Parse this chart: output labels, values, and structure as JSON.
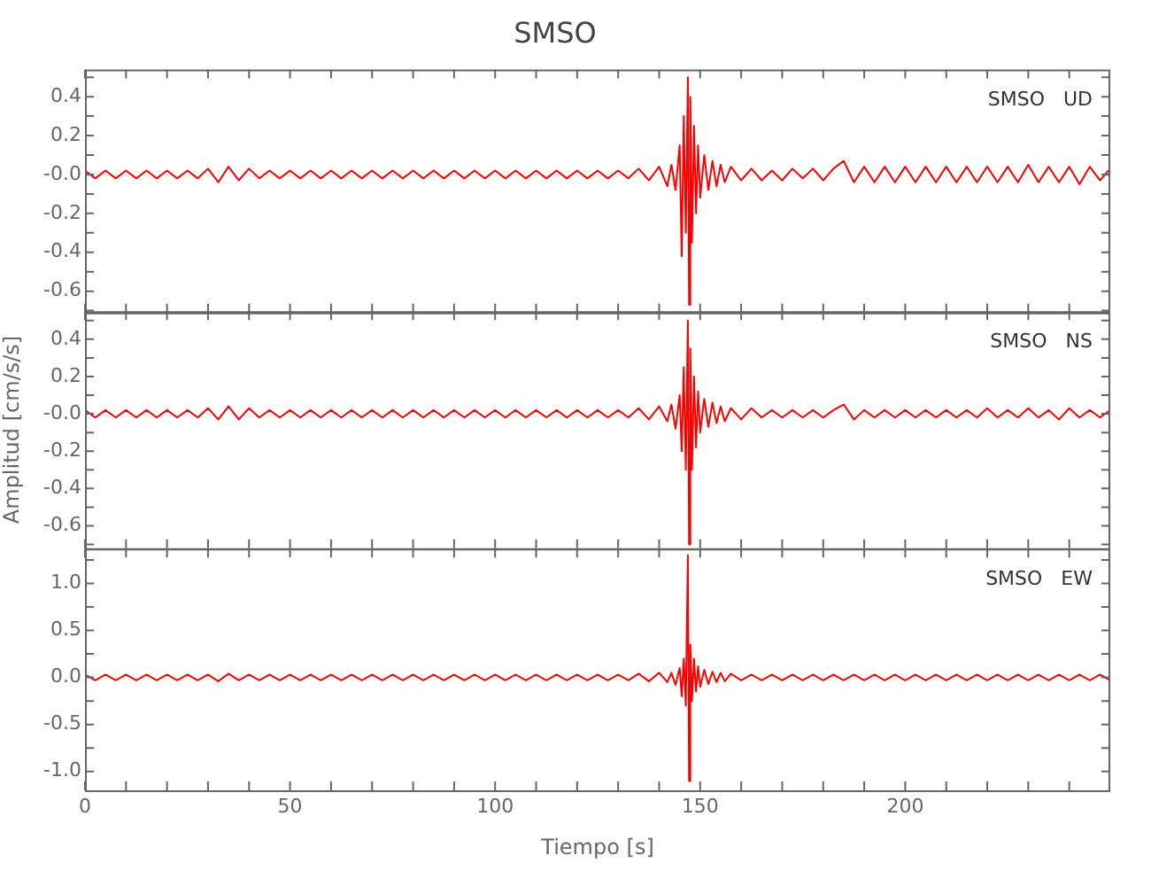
{
  "chart_data": [
    {
      "type": "line",
      "title": "SMSO",
      "annotations": [
        "SMSO   UD"
      ],
      "tick_labels": "y",
      "marker": "none",
      "x": [
        0,
        2.5,
        5,
        7.5,
        10,
        12.5,
        15,
        17.5,
        20,
        22.5,
        25,
        27.5,
        30,
        32.5,
        35,
        37.5,
        40,
        42.5,
        45,
        47.5,
        50,
        52.5,
        55,
        57.5,
        60,
        62.5,
        65,
        67.5,
        70,
        72.5,
        75,
        77.5,
        80,
        82.5,
        85,
        87.5,
        90,
        92.5,
        95,
        97.5,
        100,
        102.5,
        105,
        107.5,
        110,
        112.5,
        115,
        117.5,
        120,
        122.5,
        125,
        127.5,
        130,
        132.5,
        135,
        137.5,
        140,
        142,
        143,
        144,
        145,
        145.5,
        146,
        146.5,
        147,
        147.3,
        147.6,
        148,
        148.5,
        149,
        149.5,
        150,
        151,
        152,
        153,
        154,
        155,
        156,
        157.5,
        160,
        162.5,
        165,
        167.5,
        170,
        172.5,
        175,
        177.5,
        180,
        182.5,
        185,
        187.5,
        190,
        192.5,
        195,
        197.5,
        200,
        202.5,
        205,
        207.5,
        210,
        212.5,
        215,
        217.5,
        220,
        222.5,
        225,
        227.5,
        230,
        232.5,
        235,
        237.5,
        240,
        242.5,
        245,
        247.5,
        250
      ],
      "series": [
        {
          "color": "#ff0000",
          "values": [
            0.02,
            -0.02,
            0.02,
            -0.02,
            0.02,
            -0.02,
            0.02,
            -0.02,
            0.02,
            -0.02,
            0.02,
            -0.02,
            0.03,
            -0.04,
            0.04,
            -0.03,
            0.03,
            -0.02,
            0.02,
            -0.02,
            0.02,
            -0.02,
            0.02,
            -0.02,
            0.02,
            -0.02,
            0.02,
            -0.02,
            0.02,
            -0.02,
            0.02,
            -0.02,
            0.02,
            -0.02,
            0.02,
            -0.02,
            0.02,
            -0.02,
            0.02,
            -0.02,
            0.02,
            -0.02,
            0.02,
            -0.02,
            0.02,
            -0.02,
            0.02,
            -0.02,
            0.02,
            -0.02,
            0.02,
            -0.02,
            0.02,
            -0.02,
            0.03,
            -0.03,
            0.04,
            -0.06,
            0.05,
            -0.08,
            0.15,
            -0.42,
            0.3,
            -0.3,
            0.5,
            -0.67,
            0.4,
            -0.35,
            0.25,
            -0.2,
            0.15,
            -0.12,
            0.1,
            -0.08,
            0.07,
            -0.06,
            0.05,
            -0.04,
            0.04,
            -0.03,
            0.03,
            -0.03,
            0.02,
            -0.03,
            0.03,
            -0.02,
            0.03,
            -0.03,
            0.03,
            0.07,
            -0.04,
            0.04,
            -0.04,
            0.04,
            -0.04,
            0.04,
            -0.04,
            0.04,
            -0.04,
            0.04,
            -0.04,
            0.04,
            -0.04,
            0.04,
            -0.04,
            0.04,
            -0.04,
            0.05,
            -0.04,
            0.04,
            -0.04,
            0.04,
            -0.05,
            0.04,
            -0.03,
            0.03
          ]
        }
      ],
      "xlim": [
        0,
        250
      ],
      "xticks": [
        0,
        {
          "value": 10,
          "label": null
        },
        {
          "value": 20,
          "label": null
        },
        {
          "value": 30,
          "label": null
        },
        {
          "value": 40,
          "label": null
        },
        50,
        {
          "value": 60,
          "label": null
        },
        {
          "value": 70,
          "label": null
        },
        {
          "value": 80,
          "label": null
        },
        {
          "value": 90,
          "label": null
        },
        100,
        {
          "value": 110,
          "label": null
        },
        {
          "value": 120,
          "label": null
        },
        {
          "value": 130,
          "label": null
        },
        {
          "value": 140,
          "label": null
        },
        150,
        {
          "value": 160,
          "label": null
        },
        {
          "value": 170,
          "label": null
        },
        {
          "value": 180,
          "label": null
        },
        {
          "value": 190,
          "label": null
        },
        200,
        {
          "value": 210,
          "label": null
        },
        {
          "value": 220,
          "label": null
        },
        {
          "value": 230,
          "label": null
        },
        {
          "value": 240,
          "label": null
        }
      ],
      "ylim": [
        -0.71,
        0.54
      ],
      "yticks": [
        {
          "value": -0.7,
          "label": null
        },
        -0.6,
        {
          "value": -0.5,
          "label": null
        },
        -0.4,
        {
          "value": -0.3,
          "label": null
        },
        -0.2,
        {
          "value": -0.1,
          "label": null
        },
        {
          "value": 0,
          "label": "-0.0"
        },
        {
          "value": 0.1,
          "label": null
        },
        0.2,
        {
          "value": 0.3,
          "label": null
        },
        0.4,
        {
          "value": 0.5,
          "label": null
        }
      ]
    },
    {
      "type": "line",
      "ylabel": "Amplitud [cm/s/s]",
      "annotations": [
        "SMSO   NS"
      ],
      "tick_labels": "y",
      "marker": "none",
      "x": [
        0,
        2.5,
        5,
        7.5,
        10,
        12.5,
        15,
        17.5,
        20,
        22.5,
        25,
        27.5,
        30,
        32.5,
        35,
        37.5,
        40,
        42.5,
        45,
        47.5,
        50,
        52.5,
        55,
        57.5,
        60,
        62.5,
        65,
        67.5,
        70,
        72.5,
        75,
        77.5,
        80,
        82.5,
        85,
        87.5,
        90,
        92.5,
        95,
        97.5,
        100,
        102.5,
        105,
        107.5,
        110,
        112.5,
        115,
        117.5,
        120,
        122.5,
        125,
        127.5,
        130,
        132.5,
        135,
        137.5,
        140,
        142,
        143,
        144,
        145,
        145.5,
        146,
        146.5,
        147,
        147.3,
        147.6,
        148,
        148.5,
        149,
        149.5,
        150,
        151,
        152,
        153,
        154,
        155,
        156,
        157.5,
        160,
        162.5,
        165,
        167.5,
        170,
        172.5,
        175,
        177.5,
        180,
        182.5,
        185,
        187.5,
        190,
        192.5,
        195,
        197.5,
        200,
        202.5,
        205,
        207.5,
        210,
        212.5,
        215,
        217.5,
        220,
        222.5,
        225,
        227.5,
        230,
        232.5,
        235,
        237.5,
        240,
        242.5,
        245,
        247.5,
        250
      ],
      "series": [
        {
          "color": "#ff0000",
          "values": [
            0.02,
            -0.02,
            0.02,
            -0.02,
            0.02,
            -0.02,
            0.02,
            -0.02,
            0.02,
            -0.02,
            0.02,
            -0.02,
            0.03,
            -0.03,
            0.04,
            -0.03,
            0.03,
            -0.02,
            0.02,
            -0.02,
            0.02,
            -0.02,
            0.02,
            -0.02,
            0.02,
            -0.02,
            0.02,
            -0.02,
            0.02,
            -0.02,
            0.02,
            -0.02,
            0.02,
            -0.02,
            0.02,
            -0.02,
            0.02,
            -0.02,
            0.02,
            -0.02,
            0.02,
            -0.02,
            0.02,
            -0.02,
            0.02,
            -0.02,
            0.02,
            -0.02,
            0.02,
            -0.02,
            0.02,
            -0.02,
            0.02,
            -0.02,
            0.03,
            -0.03,
            0.04,
            -0.04,
            0.05,
            -0.08,
            0.1,
            -0.2,
            0.25,
            -0.3,
            0.5,
            -0.7,
            0.35,
            -0.3,
            0.2,
            -0.18,
            0.12,
            -0.1,
            0.08,
            -0.07,
            0.06,
            -0.05,
            0.04,
            -0.04,
            0.03,
            -0.03,
            0.03,
            -0.02,
            0.02,
            -0.02,
            0.02,
            -0.02,
            0.02,
            -0.02,
            0.02,
            0.05,
            -0.03,
            0.02,
            -0.02,
            0.02,
            -0.02,
            0.02,
            -0.02,
            0.02,
            -0.02,
            0.02,
            -0.02,
            0.02,
            -0.02,
            0.03,
            -0.02,
            0.02,
            -0.02,
            0.03,
            -0.02,
            0.02,
            -0.03,
            0.03,
            -0.02,
            0.02,
            -0.02,
            0.02
          ]
        }
      ],
      "xlim": [
        0,
        250
      ],
      "xticks": [
        0,
        {
          "value": 10,
          "label": null
        },
        {
          "value": 20,
          "label": null
        },
        {
          "value": 30,
          "label": null
        },
        {
          "value": 40,
          "label": null
        },
        50,
        {
          "value": 60,
          "label": null
        },
        {
          "value": 70,
          "label": null
        },
        {
          "value": 80,
          "label": null
        },
        {
          "value": 90,
          "label": null
        },
        100,
        {
          "value": 110,
          "label": null
        },
        {
          "value": 120,
          "label": null
        },
        {
          "value": 130,
          "label": null
        },
        {
          "value": 140,
          "label": null
        },
        150,
        {
          "value": 160,
          "label": null
        },
        {
          "value": 170,
          "label": null
        },
        {
          "value": 180,
          "label": null
        },
        {
          "value": 190,
          "label": null
        },
        200,
        {
          "value": 210,
          "label": null
        },
        {
          "value": 220,
          "label": null
        },
        {
          "value": 230,
          "label": null
        },
        {
          "value": 240,
          "label": null
        }
      ],
      "ylim": [
        -0.72,
        0.55
      ],
      "yticks": [
        {
          "value": -0.7,
          "label": null
        },
        -0.6,
        {
          "value": -0.5,
          "label": null
        },
        -0.4,
        {
          "value": -0.3,
          "label": null
        },
        -0.2,
        {
          "value": -0.1,
          "label": null
        },
        {
          "value": 0,
          "label": "-0.0"
        },
        {
          "value": 0.1,
          "label": null
        },
        0.2,
        {
          "value": 0.3,
          "label": null
        },
        0.4,
        {
          "value": 0.5,
          "label": null
        }
      ]
    },
    {
      "type": "line",
      "xlabel": "Tiempo [s]",
      "annotations": [
        "SMSO   EW"
      ],
      "marker": "none",
      "x": [
        0,
        2.5,
        5,
        7.5,
        10,
        12.5,
        15,
        17.5,
        20,
        22.5,
        25,
        27.5,
        30,
        32.5,
        35,
        37.5,
        40,
        42.5,
        45,
        47.5,
        50,
        52.5,
        55,
        57.5,
        60,
        62.5,
        65,
        67.5,
        70,
        72.5,
        75,
        77.5,
        80,
        82.5,
        85,
        87.5,
        90,
        92.5,
        95,
        97.5,
        100,
        102.5,
        105,
        107.5,
        110,
        112.5,
        115,
        117.5,
        120,
        122.5,
        125,
        127.5,
        130,
        132.5,
        135,
        137.5,
        140,
        142,
        143,
        144,
        145,
        145.5,
        146,
        146.5,
        147,
        147.3,
        147.6,
        148,
        148.5,
        149,
        149.5,
        150,
        151,
        152,
        153,
        154,
        155,
        156,
        157.5,
        160,
        162.5,
        165,
        167.5,
        170,
        172.5,
        175,
        177.5,
        180,
        182.5,
        185,
        187.5,
        190,
        192.5,
        195,
        197.5,
        200,
        202.5,
        205,
        207.5,
        210,
        212.5,
        215,
        217.5,
        220,
        222.5,
        225,
        227.5,
        230,
        232.5,
        235,
        237.5,
        240,
        242.5,
        245,
        247.5,
        250
      ],
      "series": [
        {
          "color": "#ff0000",
          "values": [
            0.03,
            -0.03,
            0.03,
            -0.03,
            0.03,
            -0.03,
            0.03,
            -0.03,
            0.03,
            -0.03,
            0.03,
            -0.03,
            0.03,
            -0.04,
            0.04,
            -0.03,
            0.03,
            -0.03,
            0.03,
            -0.03,
            0.03,
            -0.03,
            0.03,
            -0.03,
            0.03,
            -0.03,
            0.03,
            -0.03,
            0.03,
            -0.03,
            0.03,
            -0.03,
            0.03,
            -0.03,
            0.03,
            -0.03,
            0.03,
            -0.03,
            0.03,
            -0.03,
            0.03,
            -0.03,
            0.03,
            -0.03,
            0.03,
            -0.03,
            0.03,
            -0.03,
            0.03,
            -0.03,
            0.03,
            -0.03,
            0.03,
            -0.03,
            0.04,
            -0.04,
            0.05,
            -0.05,
            0.05,
            -0.08,
            0.1,
            -0.2,
            0.2,
            -0.3,
            1.3,
            -1.1,
            0.35,
            -0.25,
            0.2,
            -0.15,
            0.12,
            -0.1,
            0.08,
            -0.07,
            0.06,
            -0.05,
            0.05,
            -0.04,
            0.04,
            -0.03,
            0.03,
            -0.03,
            0.03,
            -0.03,
            0.03,
            -0.03,
            0.03,
            -0.03,
            0.03,
            -0.03,
            0.03,
            -0.03,
            0.03,
            -0.03,
            0.03,
            -0.03,
            0.03,
            -0.03,
            0.03,
            -0.03,
            0.03,
            -0.03,
            0.03,
            -0.03,
            0.03,
            -0.03,
            0.03,
            -0.03,
            0.03,
            -0.03,
            0.03,
            -0.03,
            0.03,
            -0.03,
            0.03,
            -0.03
          ]
        }
      ],
      "xlim": [
        0,
        250
      ],
      "xticks": [
        0,
        {
          "value": 10,
          "label": null
        },
        {
          "value": 20,
          "label": null
        },
        {
          "value": 30,
          "label": null
        },
        {
          "value": 40,
          "label": null
        },
        50,
        {
          "value": 60,
          "label": null
        },
        {
          "value": 70,
          "label": null
        },
        {
          "value": 80,
          "label": null
        },
        {
          "value": 90,
          "label": null
        },
        100,
        {
          "value": 110,
          "label": null
        },
        {
          "value": 120,
          "label": null
        },
        {
          "value": 130,
          "label": null
        },
        {
          "value": 140,
          "label": null
        },
        150,
        {
          "value": 160,
          "label": null
        },
        {
          "value": 170,
          "label": null
        },
        {
          "value": 180,
          "label": null
        },
        {
          "value": 190,
          "label": null
        },
        200,
        {
          "value": 210,
          "label": null
        },
        {
          "value": 220,
          "label": null
        },
        {
          "value": 230,
          "label": null
        },
        {
          "value": 240,
          "label": null
        }
      ],
      "ylim": [
        -1.2,
        1.37
      ],
      "yticks": [
        {
          "value": -1,
          "label": "-1.0"
        },
        {
          "value": -0.75,
          "label": null
        },
        -0.5,
        {
          "value": -0.25,
          "label": null
        },
        {
          "value": 0,
          "label": "0.0"
        },
        {
          "value": 0.25,
          "label": null
        },
        0.5,
        {
          "value": 0.75,
          "label": null
        },
        {
          "value": 1,
          "label": "1.0"
        },
        {
          "value": 1.25,
          "label": null
        }
      ]
    }
  ]
}
